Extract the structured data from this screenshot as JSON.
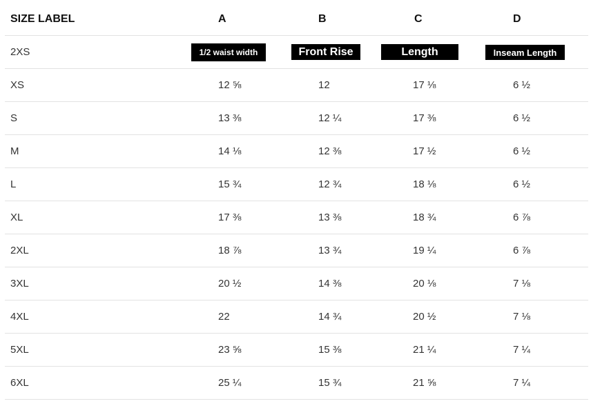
{
  "headers": {
    "size": "SIZE LABEL",
    "a": "A",
    "b": "B",
    "c": "C",
    "d": "D"
  },
  "measure_labels": {
    "a": "1/2 waist width",
    "b": "Front Rise",
    "c": "Length",
    "d": "Inseam Length"
  },
  "first_size": "2XS",
  "rows": [
    {
      "size": "XS",
      "a": "12 ⅝",
      "b": "12",
      "c": "17 ⅛",
      "d": "6 ½"
    },
    {
      "size": "S",
      "a": "13 ⅜",
      "b": "12 ¼",
      "c": "17 ⅜",
      "d": "6 ½"
    },
    {
      "size": "M",
      "a": "14 ⅛",
      "b": "12 ⅜",
      "c": "17 ½",
      "d": "6 ½"
    },
    {
      "size": "L",
      "a": "15 ¾",
      "b": "12 ¾",
      "c": "18 ⅛",
      "d": "6 ½"
    },
    {
      "size": "XL",
      "a": "17 ⅜",
      "b": "13 ⅜",
      "c": "18 ¾",
      "d": "6 ⅞"
    },
    {
      "size": "2XL",
      "a": "18 ⅞",
      "b": "13 ¾",
      "c": "19 ¼",
      "d": "6 ⅞"
    },
    {
      "size": "3XL",
      "a": "20 ½",
      "b": "14 ⅜",
      "c": "20 ⅛",
      "d": "7 ⅛"
    },
    {
      "size": "4XL",
      "a": "22",
      "b": "14 ¾",
      "c": "20 ½",
      "d": "7 ⅛"
    },
    {
      "size": "5XL",
      "a": "23 ⅝",
      "b": "15 ⅜",
      "c": "21 ¼",
      "d": "7 ¼"
    },
    {
      "size": "6XL",
      "a": "25 ¼",
      "b": "15 ¾",
      "c": "21 ⅝",
      "d": "7 ¼"
    }
  ]
}
